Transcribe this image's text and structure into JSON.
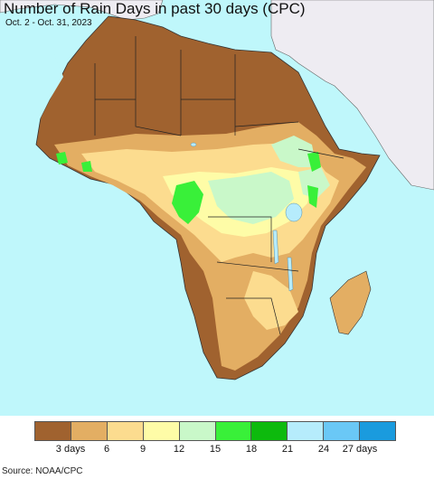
{
  "title": "Number of Rain Days in past 30 days (CPC)",
  "subtitle": "Oct. 2 - Oct. 31, 2023",
  "source": "Source: NOAA/CPC",
  "legend": {
    "colors": [
      "#a0622f",
      "#e3ae63",
      "#fcdc8f",
      "#fefca7",
      "#c9f8c9",
      "#39f039",
      "#0dba0d",
      "#b6ecfc",
      "#6ac8f6",
      "#1a9bde"
    ],
    "labels": [
      {
        "text": "3 days",
        "index": 1
      },
      {
        "text": "6",
        "index": 2
      },
      {
        "text": "9",
        "index": 3
      },
      {
        "text": "12",
        "index": 4
      },
      {
        "text": "15",
        "index": 5
      },
      {
        "text": "18",
        "index": 6
      },
      {
        "text": "21",
        "index": 7
      },
      {
        "text": "24",
        "index": 8
      },
      {
        "text": "27 days",
        "index": 9
      }
    ]
  },
  "colors": {
    "ocean": "#bff7fb",
    "outside_land": "#eeecf2",
    "dry": "#a0622f",
    "low": "#e3ae63",
    "mid": "#fcdc8f",
    "yellow": "#fefca7",
    "light_green": "#c9f8c9",
    "green": "#39f039",
    "lake": "#b6ecfc"
  }
}
